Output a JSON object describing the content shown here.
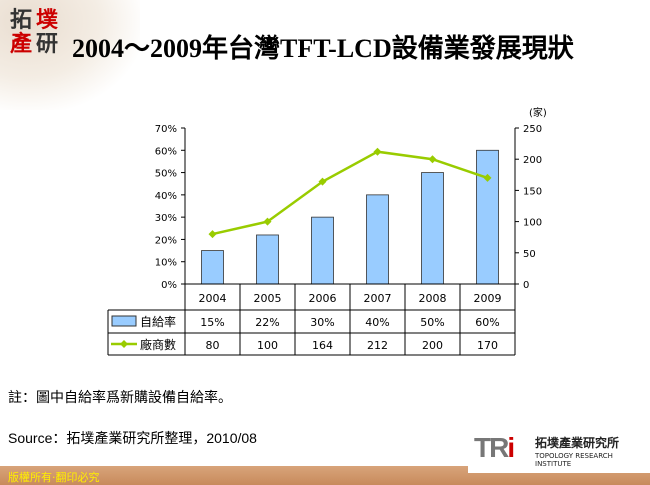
{
  "header": {
    "logo_text": "拓墣產研",
    "title": "2004～2009年台灣TFT-LCD設備業發展現狀"
  },
  "chart_data": {
    "type": "bar+line",
    "categories": [
      "2004",
      "2005",
      "2006",
      "2007",
      "2008",
      "2009"
    ],
    "series": [
      {
        "name": "自給率",
        "type": "bar",
        "axis": "left",
        "values": [
          15,
          22,
          30,
          40,
          50,
          60
        ],
        "labels": [
          "15%",
          "22%",
          "30%",
          "40%",
          "50%",
          "60%"
        ],
        "color": "#99ccff"
      },
      {
        "name": "廠商數",
        "type": "line",
        "axis": "right",
        "values": [
          80,
          100,
          164,
          212,
          200,
          170
        ],
        "labels": [
          "80",
          "100",
          "164",
          "212",
          "200",
          "170"
        ],
        "color": "#99cc00"
      }
    ],
    "y_left": {
      "ylim": [
        0,
        70
      ],
      "ticks": [
        "0%",
        "10%",
        "20%",
        "30%",
        "40%",
        "50%",
        "60%",
        "70%"
      ]
    },
    "y_right": {
      "ylim": [
        0,
        250
      ],
      "ticks": [
        "0",
        "50",
        "100",
        "150",
        "200",
        "250"
      ],
      "unit": "(家)"
    },
    "data_table": true
  },
  "note": "註：圖中自給率爲新購設備自給率。",
  "source": "Source：拓墣產業研究所整理，2010/08",
  "footer": {
    "copyright": "版權所有‧翻印必究",
    "org_cn": "拓墣產業研究所",
    "org_en": "TOPOLOGY RESEARCH INSTITUTE",
    "org_mark": "TRi"
  },
  "colors": {
    "logo_red": "#cc0000",
    "footer": "#c88a5c"
  }
}
